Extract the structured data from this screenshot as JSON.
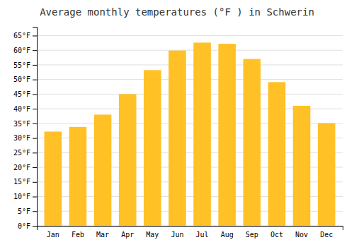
{
  "chart_data": {
    "type": "bar",
    "title": "Average monthly temperatures (°F ) in Schwerin",
    "categories": [
      "Jan",
      "Feb",
      "Mar",
      "Apr",
      "May",
      "Jun",
      "Jul",
      "Aug",
      "Sep",
      "Oct",
      "Nov",
      "Dec"
    ],
    "values": [
      32.2,
      33.8,
      38.0,
      45.0,
      53.2,
      59.9,
      62.6,
      62.2,
      57.0,
      49.1,
      41.0,
      35.1
    ],
    "color": "#FFC125",
    "ylim": [
      0,
      68
    ],
    "yticks": [
      {
        "value": 0,
        "label": "0°F"
      },
      {
        "value": 5,
        "label": "5°F"
      },
      {
        "value": 10,
        "label": "10°F"
      },
      {
        "value": 15,
        "label": "15°F"
      },
      {
        "value": 20,
        "label": "20°F"
      },
      {
        "value": 25,
        "label": "25°F"
      },
      {
        "value": 30,
        "label": "30°F"
      },
      {
        "value": 35,
        "label": "35°F"
      },
      {
        "value": 40,
        "label": "40°F"
      },
      {
        "value": 45,
        "label": "45°F"
      },
      {
        "value": 50,
        "label": "50°F"
      },
      {
        "value": 55,
        "label": "55°F"
      },
      {
        "value": 60,
        "label": "60°F"
      },
      {
        "value": 65,
        "label": "65°F"
      }
    ],
    "grid": true
  }
}
